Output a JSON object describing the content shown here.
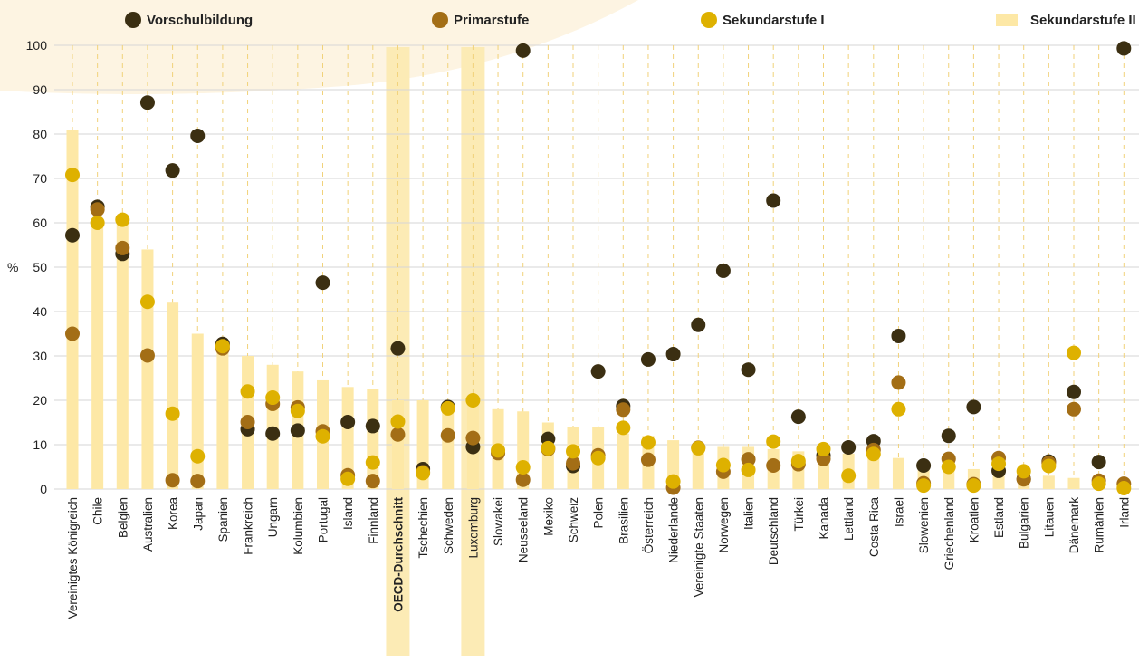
{
  "colors": {
    "background_blob": "#fdf4e2",
    "bar": "#fde8a6",
    "highlight": "#fcebb5",
    "vorschul": "#3b2f12",
    "primar": "#a36e16",
    "sekundar1": "#deb100",
    "grid": "#d6d6d6",
    "guide": "#f1d27a"
  },
  "chart_data": {
    "type": "bar",
    "ylabel": "%",
    "ylim": [
      0,
      100
    ],
    "yticks": [
      0,
      10,
      20,
      30,
      40,
      50,
      60,
      70,
      80,
      90,
      100
    ],
    "grid": true,
    "legend_position": "top",
    "highlighted": [
      "OECD-Durchschnitt",
      "Luxemburg"
    ],
    "bold_category": "OECD-Durchschnitt",
    "categories": [
      "Vereinigtes Königreich",
      "Chile",
      "Belgien",
      "Australien",
      "Korea",
      "Japan",
      "Spanien",
      "Frankreich",
      "Ungarn",
      "Kolumbien",
      "Portugal",
      "Island",
      "Finnland",
      "OECD-Durchschnitt",
      "Tschechien",
      "Schweden",
      "Luxemburg",
      "Slowakei",
      "Neuseeland",
      "Mexiko",
      "Schweiz",
      "Polen",
      "Brasilien",
      "Österreich",
      "Niederlande",
      "Vereinigte Staaten",
      "Norwegen",
      "Italien",
      "Deutschland",
      "Türkei",
      "Kanada",
      "Lettland",
      "Costa Rica",
      "Israel",
      "Slowenien",
      "Griechenland",
      "Kroatien",
      "Estland",
      "Bulgarien",
      "Litauen",
      "Dänemark",
      "Rumänien",
      "Irland"
    ],
    "series": [
      {
        "name": "Sekundarstufe II",
        "kind": "bar",
        "values": [
          81,
          60,
          60,
          54,
          42,
          35,
          33,
          30,
          28,
          26.5,
          24.5,
          23,
          22.5,
          20,
          20,
          19,
          19,
          18,
          17.5,
          15,
          14,
          14,
          12.5,
          12,
          11,
          10,
          9.5,
          9.5,
          9,
          8.5,
          8,
          8,
          7.5,
          7,
          5,
          5,
          4.5,
          4,
          3.5,
          3,
          2.5,
          1.5,
          1
        ]
      },
      {
        "name": "Vorschulbildung",
        "kind": "dot",
        "values": [
          57.2,
          63.6,
          53,
          87.1,
          71.8,
          79.6,
          32.7,
          13.5,
          12.5,
          13.2,
          46.5,
          15.1,
          14.2,
          31.7,
          4.5,
          18.5,
          9.5,
          null,
          98.8,
          11.3,
          5.2,
          26.5,
          18.7,
          29.2,
          30.4,
          37,
          49.2,
          26.9,
          65,
          16.3,
          7.6,
          9.4,
          10.8,
          34.5,
          5.3,
          12,
          18.5,
          4.1,
          2.3,
          6.2,
          21.9,
          6.1,
          99.3
        ]
      },
      {
        "name": "Primarstufe",
        "kind": "dot",
        "values": [
          35,
          63,
          54.3,
          30.1,
          2,
          1.8,
          31.7,
          15.1,
          19.2,
          18.4,
          13,
          3.1,
          1.8,
          12.3,
          3.8,
          12.1,
          11.5,
          8.1,
          2.1,
          9,
          5.8,
          7.6,
          17.9,
          6.6,
          0.3,
          9.3,
          3.9,
          6.7,
          5.3,
          5.6,
          6.8,
          null,
          8.8,
          24,
          1.3,
          6.8,
          1.1,
          7,
          2.2,
          5.9,
          18,
          1.9,
          1.2
        ]
      },
      {
        "name": "Sekundarstufe I",
        "kind": "dot",
        "values": [
          70.8,
          60,
          60.7,
          42.2,
          17,
          7.4,
          32.2,
          22,
          20.6,
          17.6,
          11.9,
          2.3,
          6,
          15.2,
          3.6,
          18.2,
          20,
          8.7,
          4.9,
          9.2,
          8.5,
          7,
          13.8,
          10.5,
          1.7,
          9.2,
          5.4,
          4.3,
          10.7,
          6.3,
          9,
          3,
          7.9,
          18,
          0.8,
          5,
          0.8,
          5.7,
          4,
          5.2,
          30.7,
          1.2,
          0.2
        ]
      }
    ],
    "legend": [
      {
        "label": "Vorschulbildung",
        "shape": "dot",
        "color": "#3b2f12"
      },
      {
        "label": "Primarstufe",
        "shape": "dot",
        "color": "#a36e16"
      },
      {
        "label": "Sekundarstufe I",
        "shape": "dot",
        "color": "#deb100"
      },
      {
        "label": "Sekundarstufe II",
        "shape": "rect",
        "color": "#fde8a6"
      }
    ]
  }
}
